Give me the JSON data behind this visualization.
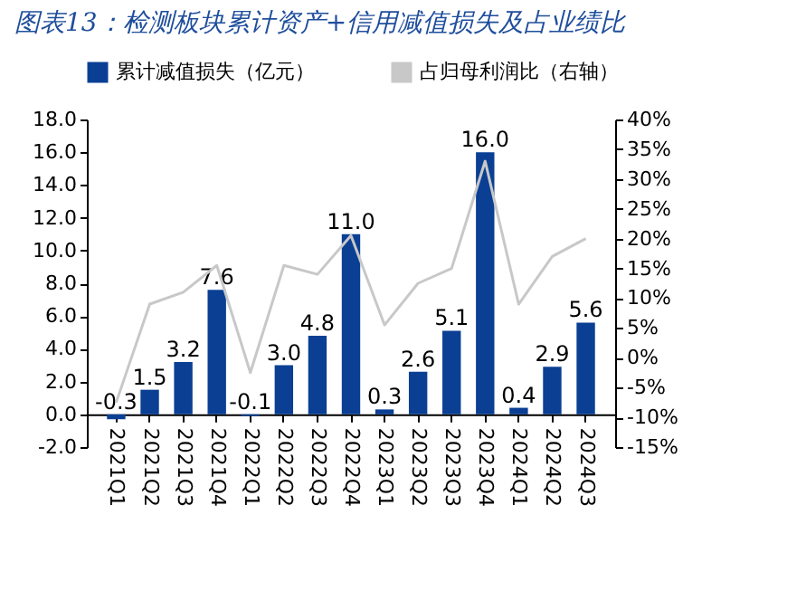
{
  "chart_data": {
    "type": "bar",
    "title": "图表13：检测板块累计资产+信用减值损失及占业绩比",
    "categories": [
      "2021Q1",
      "2021Q2",
      "2021Q3",
      "2021Q4",
      "2022Q1",
      "2022Q2",
      "2022Q3",
      "2022Q4",
      "2023Q1",
      "2023Q2",
      "2023Q3",
      "2023Q4",
      "2024Q1",
      "2024Q2",
      "2024Q3"
    ],
    "series": [
      {
        "name": "累计减值损失（亿元）",
        "color": "#0a3f94",
        "values": [
          -0.3,
          1.5,
          3.2,
          7.6,
          -0.1,
          3.0,
          4.8,
          11.0,
          0.3,
          2.6,
          5.1,
          16.0,
          0.4,
          2.9,
          5.6
        ],
        "value_labels": [
          "-0.3",
          "1.5",
          "3.2",
          "7.6",
          "-0.1",
          "3.0",
          "4.8",
          "11.0",
          "0.3",
          "2.6",
          "5.1",
          "16.0",
          "0.4",
          "2.9",
          "5.6"
        ]
      },
      {
        "name": "占归母利润比（右轴）",
        "type": "line",
        "axis": "y2",
        "color": "#c8c8c8",
        "values": [
          -7.5,
          9,
          11,
          15.5,
          -2.5,
          15.5,
          14,
          20.5,
          5.5,
          12.5,
          15,
          33,
          9,
          17,
          20
        ]
      }
    ],
    "ylim": [
      -2,
      18
    ],
    "yticks": [
      {
        "value": -2,
        "label": "-2.0"
      },
      {
        "value": 0,
        "label": "0.0"
      },
      {
        "value": 2,
        "label": "2.0"
      },
      {
        "value": 4,
        "label": "4.0"
      },
      {
        "value": 6,
        "label": "6.0"
      },
      {
        "value": 8,
        "label": "8.0"
      },
      {
        "value": 10,
        "label": "10.0"
      },
      {
        "value": 12,
        "label": "12.0"
      },
      {
        "value": 14,
        "label": "14.0"
      },
      {
        "value": 16,
        "label": "16.0"
      },
      {
        "value": 18,
        "label": "18.0"
      }
    ],
    "y2lim": [
      -15,
      40
    ],
    "y2ticks": [
      {
        "value": -15,
        "label": "-15%"
      },
      {
        "value": -10,
        "label": "-10%"
      },
      {
        "value": -5,
        "label": "-5%"
      },
      {
        "value": 0,
        "label": "0%"
      },
      {
        "value": 5,
        "label": "5%"
      },
      {
        "value": 10,
        "label": "10%"
      },
      {
        "value": 15,
        "label": "15%"
      },
      {
        "value": 20,
        "label": "20%"
      },
      {
        "value": 25,
        "label": "25%"
      },
      {
        "value": 30,
        "label": "30%"
      },
      {
        "value": 35,
        "label": "35%"
      },
      {
        "value": 40,
        "label": "40%"
      }
    ],
    "legend": "top"
  }
}
